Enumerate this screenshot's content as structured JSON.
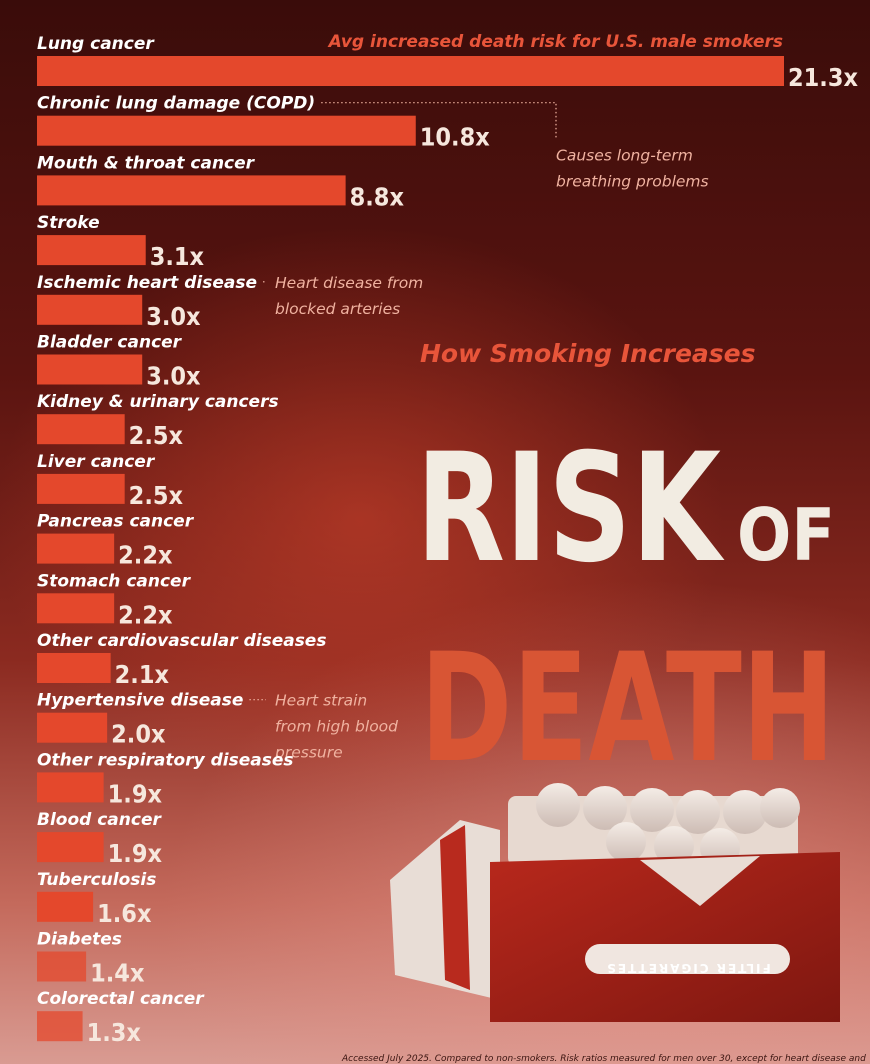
{
  "header": {
    "subtitle": "How Smoking Increases",
    "title_line1": "RISK",
    "title_of": "OF",
    "title_line2": "DEATH"
  },
  "chart_data": {
    "type": "bar",
    "orientation": "horizontal",
    "categories": [
      "Lung cancer",
      "Chronic lung damage (COPD)",
      "Mouth & throat cancer",
      "Stroke",
      "Ischemic heart disease",
      "Bladder cancer",
      "Kidney & urinary cancers",
      "Liver cancer",
      "Pancreas cancer",
      "Stomach cancer",
      "Other cardiovascular diseases",
      "Hypertensive disease",
      "Other respiratory diseases",
      "Blood cancer",
      "Tuberculosis",
      "Diabetes",
      "Colorectal cancer"
    ],
    "values": [
      21.3,
      10.8,
      8.8,
      3.1,
      3.0,
      3.0,
      2.5,
      2.5,
      2.2,
      2.2,
      2.1,
      2.0,
      1.9,
      1.9,
      1.6,
      1.4,
      1.3
    ],
    "value_labels": [
      "21.3x",
      "10.8x",
      "8.8x",
      "3.1x",
      "3.0x",
      "3.0x",
      "2.5x",
      "2.5x",
      "2.2x",
      "2.2x",
      "2.1x",
      "2.0x",
      "1.9x",
      "1.9x",
      "1.6x",
      "1.4x",
      "1.3x"
    ],
    "series_label": "Avg increased death risk for U.S. male smokers",
    "bar_color": "#e4482c",
    "annotations": [
      {
        "category": "Chronic lung damage (COPD)",
        "lines": [
          "Causes long-term",
          "breathing problems"
        ]
      },
      {
        "category": "Ischemic heart disease",
        "lines": [
          "Heart disease from",
          "blocked arteries"
        ]
      },
      {
        "category": "Hypertensive disease",
        "lines": [
          "Heart strain",
          "from high blood",
          "pressure"
        ]
      }
    ]
  },
  "footer": {
    "note": "Accessed July 2025. Compared to non-smokers. Risk ratios measured for men over 30, except for heart disease and"
  },
  "pack": {
    "label": "FILTER CIGARETTES"
  }
}
